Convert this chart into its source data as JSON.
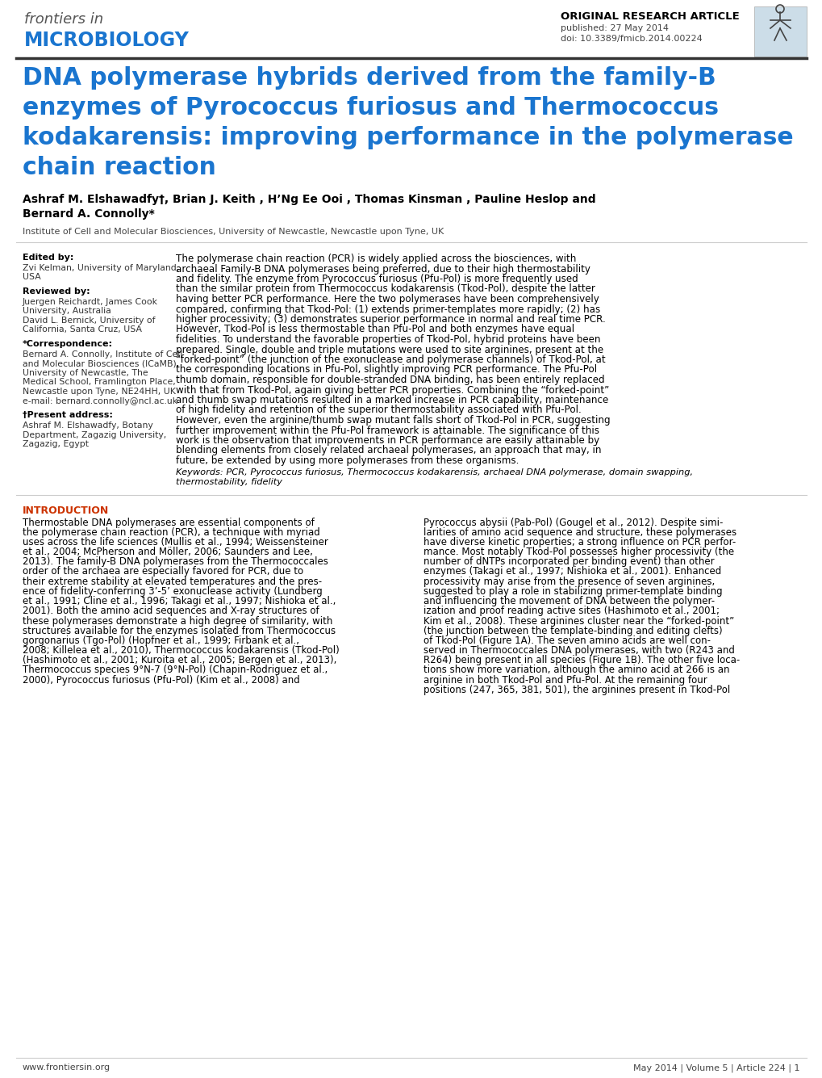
{
  "bg_color": "#ffffff",
  "header_logo_text1": "frontiers in",
  "header_logo_text2": "MICROBIOLOGY",
  "header_right_text1": "ORIGINAL RESEARCH ARTICLE",
  "header_right_text2": "published: 27 May 2014",
  "header_right_text3": "doi: 10.3389/fmicb.2014.00224",
  "title_lines": [
    "DNA polymerase hybrids derived from the family-B",
    "enzymes of Pyrococcus furiosus and Thermococcus",
    "kodakarensis: improving performance in the polymerase",
    "chain reaction"
  ],
  "authors_line1": "Ashraf M. Elshawadfy†, Brian J. Keith , H’Ng Ee Ooi , Thomas Kinsman , Pauline Heslop and",
  "authors_line2": "Bernard A. Connolly*",
  "affiliation": "Institute of Cell and Molecular Biosciences, University of Newcastle, Newcastle upon Tyne, UK",
  "sidebar_edited_by_label": "Edited by:",
  "sidebar_edited_by": [
    "Zvi Kelman, University of Maryland,",
    "USA"
  ],
  "sidebar_reviewed_by_label": "Reviewed by:",
  "sidebar_reviewed_by": [
    "Juergen Reichardt, James Cook",
    "University, Australia",
    "David L. Bernick, University of",
    "California, Santa Cruz, USA"
  ],
  "sidebar_correspondence_label": "*Correspondence:",
  "sidebar_correspondence": [
    "Bernard A. Connolly, Institute of Cell",
    "and Molecular Biosciences (ICaMB),",
    "University of Newcastle, The",
    "Medical School, Framlington Place,",
    "Newcastle upon Tyne, NE24HH, UK",
    "e-mail: bernard.connolly@ncl.ac.uk"
  ],
  "sidebar_present_label": "†Present address:",
  "sidebar_present": [
    "Ashraf M. Elshawadfy, Botany",
    "Department, Zagazig University,",
    "Zagazig, Egypt"
  ],
  "abstract_lines": [
    "The polymerase chain reaction (PCR) is widely applied across the biosciences, with",
    "archaeal Family-B DNA polymerases being preferred, due to their high thermostability",
    "and fidelity. The enzyme from Pyrococcus furiosus (Pfu-Pol) is more frequently used",
    "than the similar protein from Thermococcus kodakarensis (Tkod-Pol), despite the latter",
    "having better PCR performance. Here the two polymerases have been comprehensively",
    "compared, confirming that Tkod-Pol: (1) extends primer-templates more rapidly; (2) has",
    "higher processivity; (3) demonstrates superior performance in normal and real time PCR.",
    "However, Tkod-Pol is less thermostable than Pfu-Pol and both enzymes have equal",
    "fidelities. To understand the favorable properties of Tkod-Pol, hybrid proteins have been",
    "prepared. Single, double and triple mutations were used to site arginines, present at the",
    "“forked-point” (the junction of the exonuclease and polymerase channels) of Tkod-Pol, at",
    "the corresponding locations in Pfu-Pol, slightly improving PCR performance. The Pfu-Pol",
    "thumb domain, responsible for double-stranded DNA binding, has been entirely replaced",
    "with that from Tkod-Pol, again giving better PCR properties. Combining the “forked-point”",
    "and thumb swap mutations resulted in a marked increase in PCR capability, maintenance",
    "of high fidelity and retention of the superior thermostability associated with Pfu-Pol.",
    "However, even the arginine/thumb swap mutant falls short of Tkod-Pol in PCR, suggesting",
    "further improvement within the Pfu-Pol framework is attainable. The significance of this",
    "work is the observation that improvements in PCR performance are easily attainable by",
    "blending elements from closely related archaeal polymerases, an approach that may, in",
    "future, be extended by using more polymerases from these organisms."
  ],
  "keywords_line1": "Keywords: PCR, Pyrococcus furiosus, Thermococcus kodakarensis, archaeal DNA polymerase, domain swapping,",
  "keywords_line2": "thermostability, fidelity",
  "intro_header": "INTRODUCTION",
  "intro_left_lines": [
    "Thermostable DNA polymerases are essential components of",
    "the polymerase chain reaction (PCR), a technique with myriad",
    "uses across the life sciences (Mullis et al., 1994; Weissensteiner",
    "et al., 2004; McPherson and Möller, 2006; Saunders and Lee,",
    "2013). The family-B DNA polymerases from the Thermococcales",
    "order of the archaea are especially favored for PCR, due to",
    "their extreme stability at elevated temperatures and the pres-",
    "ence of fidelity-conferring 3’-5’ exonuclease activity (Lundberg",
    "et al., 1991; Cline et al., 1996; Takagi et al., 1997; Nishioka et al.,",
    "2001). Both the amino acid sequences and X-ray structures of",
    "these polymerases demonstrate a high degree of similarity, with",
    "structures available for the enzymes isolated from Thermococcus",
    "gorgonarius (Tgo-Pol) (Hopfner et al., 1999; Firbank et al.,",
    "2008; Killelea et al., 2010), Thermococcus kodakarensis (Tkod-Pol)",
    "(Hashimoto et al., 2001; Kuroita et al., 2005; Bergen et al., 2013),",
    "Thermococcus species 9°N-7 (9°N-Pol) (Chapin-Rodriguez et al.,",
    "2000), Pyrococcus furiosus (Pfu-Pol) (Kim et al., 2008) and"
  ],
  "intro_right_lines": [
    "Pyrococcus abysii (Pab-Pol) (Gougel et al., 2012). Despite simi-",
    "larities of amino acid sequence and structure, these polymerases",
    "have diverse kinetic properties; a strong influence on PCR perfor-",
    "mance. Most notably Tkod-Pol possesses higher processivity (the",
    "number of dNTPs incorporated per binding event) than other",
    "enzymes (Takagi et al., 1997; Nishioka et al., 2001). Enhanced",
    "processivity may arise from the presence of seven arginines,",
    "suggested to play a role in stabilizing primer-template binding",
    "and influencing the movement of DNA between the polymer-",
    "ization and proof reading active sites (Hashimoto et al., 2001;",
    "Kim et al., 2008). These arginines cluster near the “forked-point”",
    "(the junction between the template-binding and editing clefts)",
    "of Tkod-Pol (Figure 1A). The seven amino acids are well con-",
    "served in Thermococcales DNA polymerases, with two (R243 and",
    "R264) being present in all species (Figure 1B). The other five loca-",
    "tions show more variation, although the amino acid at 266 is an",
    "arginine in both Tkod-Pol and Pfu-Pol. At the remaining four",
    "positions (247, 365, 381, 501), the arginines present in Tkod-Pol"
  ],
  "footer_left": "www.frontiersin.org",
  "footer_right": "May 2014 | Volume 5 | Article 224 | 1",
  "blue_color": "#1a75cf",
  "intro_color": "#cc3300",
  "header_line_color": "#333333",
  "sep_line_color": "#cccccc"
}
